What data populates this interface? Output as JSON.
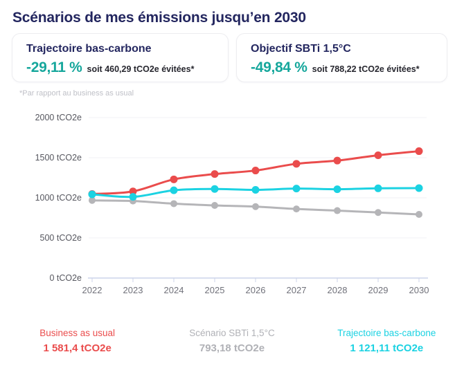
{
  "page": {
    "title": "Scénarios de mes émissions jusqu’en 2030"
  },
  "cards": [
    {
      "title": "Trajectoire bas-carbone",
      "percent": "-29,11 %",
      "detail": "soit 460,29 tCO2e évitées*"
    },
    {
      "title": "Objectif SBTi 1,5°C",
      "percent": "-49,84 %",
      "detail": "soit 788,22 tCO2e évitées*"
    }
  ],
  "footnote": "*Par rapport au business as usual",
  "chart_data": {
    "type": "line",
    "x": [
      2022,
      2023,
      2024,
      2025,
      2026,
      2027,
      2028,
      2029,
      2030
    ],
    "series": [
      {
        "name": "Business as usual",
        "color": "#ea4c4c",
        "z": 2,
        "marker_radius": 5.5,
        "values": [
          1047,
          1080,
          1230,
          1296,
          1340,
          1424,
          1464,
          1530,
          1581.4
        ]
      },
      {
        "name": "Scénario SBTi 1,5°C",
        "color": "#b5b5b8",
        "z": 1,
        "marker_radius": 5,
        "values": [
          968,
          960,
          927,
          905,
          890,
          861,
          840,
          817,
          793.18
        ]
      },
      {
        "name": "Trajectoire bas-carbone",
        "color": "#1bd2e2",
        "z": 3,
        "marker_radius": 5.5,
        "values": [
          1043,
          1012,
          1094,
          1110,
          1099,
          1115,
          1107,
          1118,
          1121.11
        ]
      }
    ],
    "yticks": [
      0,
      500,
      1000,
      1500,
      2000
    ],
    "ytick_label_format": "{v} tCO2e",
    "ylim": [
      0,
      2000
    ],
    "grid": true,
    "legend_position": "bottom",
    "title": "",
    "xlabel": "",
    "ylabel": "tCO2e"
  },
  "legend": [
    {
      "label": "Business as usual",
      "value": "1 581,4 tCO2e",
      "color": "#ea4c4c"
    },
    {
      "label": "Scénario SBTi 1,5°C",
      "value": "793,18 tCO2e",
      "color": "#b0b1b6"
    },
    {
      "label": "Trajectoire bas-carbone",
      "value": "1 121,11 tCO2e",
      "color": "#1bd2e2"
    }
  ],
  "colors": {
    "navy": "#23265f",
    "teal": "#16a79c",
    "footnote": "#bfc0c7",
    "grid": "#f1f1f4",
    "axis_line": "#ccd3ea",
    "ytick_label": "#55565e",
    "xtick_label": "#70717a",
    "card_border": "#ededf0"
  }
}
